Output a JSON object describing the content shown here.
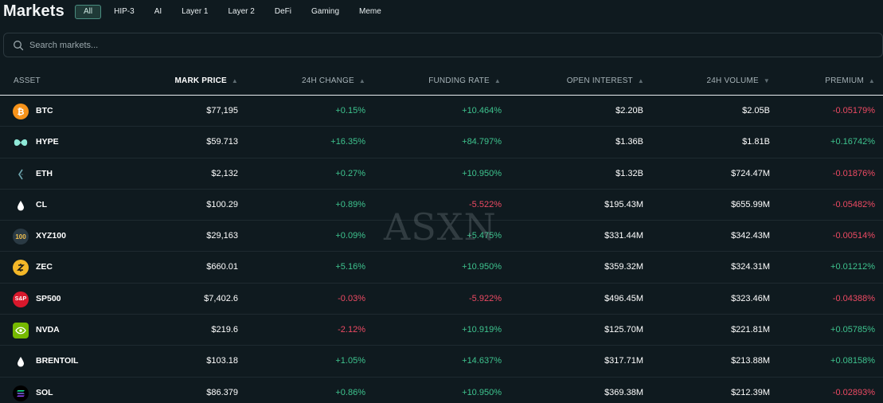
{
  "header": {
    "title": "Markets",
    "tabs": [
      {
        "label": "All",
        "active": true
      },
      {
        "label": "HIP-3",
        "active": false
      },
      {
        "label": "AI",
        "active": false
      },
      {
        "label": "Layer 1",
        "active": false
      },
      {
        "label": "Layer 2",
        "active": false
      },
      {
        "label": "DeFi",
        "active": false
      },
      {
        "label": "Gaming",
        "active": false
      },
      {
        "label": "Meme",
        "active": false
      }
    ]
  },
  "search": {
    "placeholder": "Search markets...",
    "value": "",
    "icon": "search-icon"
  },
  "table": {
    "columns": {
      "asset": "ASSET",
      "price": "MARK PRICE",
      "change": "24H CHANGE",
      "funding": "FUNDING RATE",
      "oi": "OPEN INTEREST",
      "vol": "24H VOLUME",
      "premium": "PREMIUM"
    },
    "sort_indicators": {
      "price": "up",
      "change": "up",
      "funding": "up",
      "oi": "up",
      "vol": "down",
      "premium": "up"
    },
    "rows": [
      {
        "asset": "BTC",
        "icon": "btc-icon",
        "price": "$77,195",
        "change": "+0.15%",
        "funding": "+10.464%",
        "oi": "$2.20B",
        "vol": "$2.05B",
        "premium": "-0.05179%"
      },
      {
        "asset": "HYPE",
        "icon": "hype-icon",
        "price": "$59.713",
        "change": "+16.35%",
        "funding": "+84.797%",
        "oi": "$1.36B",
        "vol": "$1.81B",
        "premium": "+0.16742%"
      },
      {
        "asset": "ETH",
        "icon": "eth-icon",
        "price": "$2,132",
        "change": "+0.27%",
        "funding": "+10.950%",
        "oi": "$1.32B",
        "vol": "$724.47M",
        "premium": "-0.01876%"
      },
      {
        "asset": "CL",
        "icon": "oil-drop-icon",
        "price": "$100.29",
        "change": "+0.89%",
        "funding": "-5.522%",
        "oi": "$195.43M",
        "vol": "$655.99M",
        "premium": "-0.05482%"
      },
      {
        "asset": "XYZ100",
        "icon": "xyz100-icon",
        "icon_text": "100",
        "price": "$29,163",
        "change": "+0.09%",
        "funding": "+5.475%",
        "oi": "$331.44M",
        "vol": "$342.43M",
        "premium": "-0.00514%"
      },
      {
        "asset": "ZEC",
        "icon": "zec-icon",
        "price": "$660.01",
        "change": "+5.16%",
        "funding": "+10.950%",
        "oi": "$359.32M",
        "vol": "$324.31M",
        "premium": "+0.01212%"
      },
      {
        "asset": "SP500",
        "icon": "sp500-icon",
        "icon_text": "S&P",
        "price": "$7,402.6",
        "change": "-0.03%",
        "funding": "-5.922%",
        "oi": "$496.45M",
        "vol": "$323.46M",
        "premium": "-0.04388%"
      },
      {
        "asset": "NVDA",
        "icon": "nvda-icon",
        "price": "$219.6",
        "change": "-2.12%",
        "funding": "+10.919%",
        "oi": "$125.70M",
        "vol": "$221.81M",
        "premium": "+0.05785%"
      },
      {
        "asset": "BRENTOIL",
        "icon": "oil-drop-icon",
        "price": "$103.18",
        "change": "+1.05%",
        "funding": "+14.637%",
        "oi": "$317.71M",
        "vol": "$213.88M",
        "premium": "+0.08158%"
      },
      {
        "asset": "SOL",
        "icon": "sol-icon",
        "price": "$86.379",
        "change": "+0.86%",
        "funding": "+10.950%",
        "oi": "$369.38M",
        "vol": "$212.39M",
        "premium": "-0.02893%"
      }
    ]
  },
  "watermark": "ASXN",
  "colors": {
    "positive": "#3ec38e",
    "negative": "#ed4a63",
    "accent": "#4a8d80",
    "background": "#0f1a1f"
  }
}
